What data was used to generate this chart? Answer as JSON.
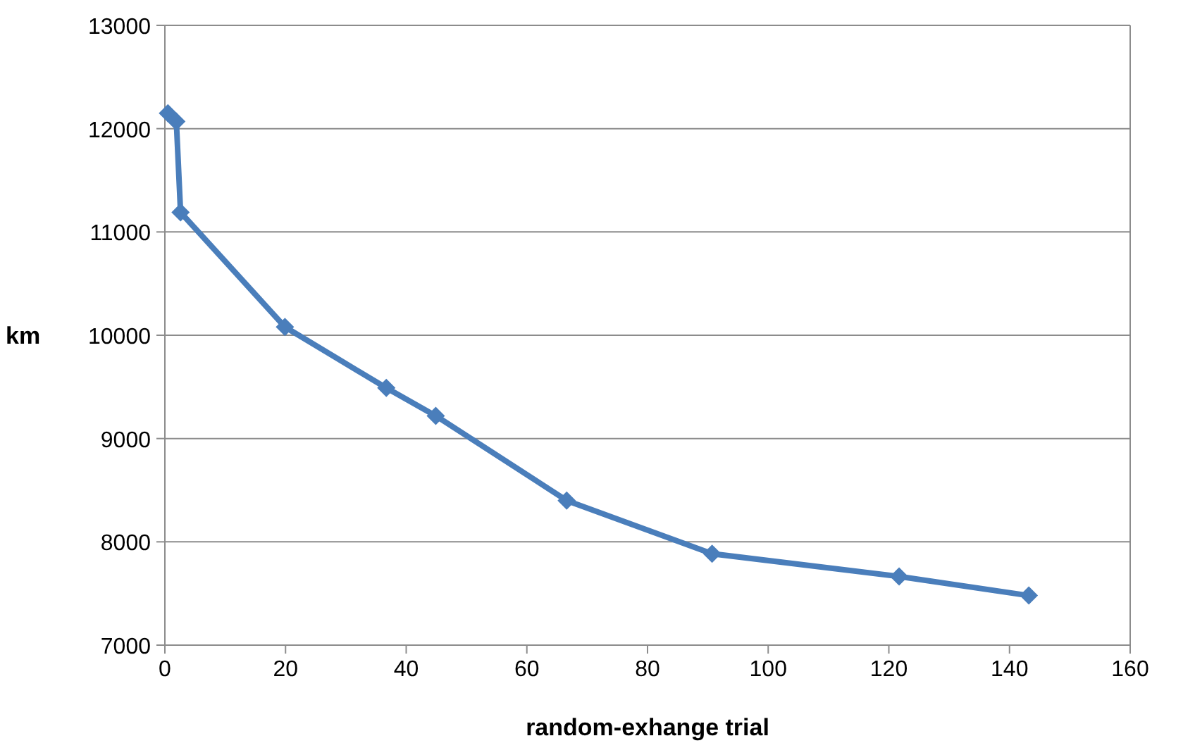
{
  "chart_data": {
    "type": "line",
    "xlabel": "random-exhange trial",
    "ylabel": "km",
    "x": [
      0.5,
      1.9,
      2.6,
      19.9,
      36.7,
      44.9,
      66.6,
      90.7,
      121.7,
      143.2
    ],
    "series": [
      {
        "color": "#4a7ebb",
        "values": [
          12150,
          12070,
          11190,
          10080,
          9490,
          9220,
          8400,
          7885,
          7665,
          7480
        ]
      }
    ],
    "xlim": [
      0,
      160
    ],
    "xticks": [
      0,
      20,
      40,
      60,
      80,
      100,
      120,
      140,
      160
    ],
    "ylim": [
      7000,
      13000
    ],
    "yticks": [
      7000,
      8000,
      9000,
      10000,
      11000,
      12000,
      13000
    ],
    "grid": "y",
    "marker": "diamond",
    "line_style": "solid"
  }
}
